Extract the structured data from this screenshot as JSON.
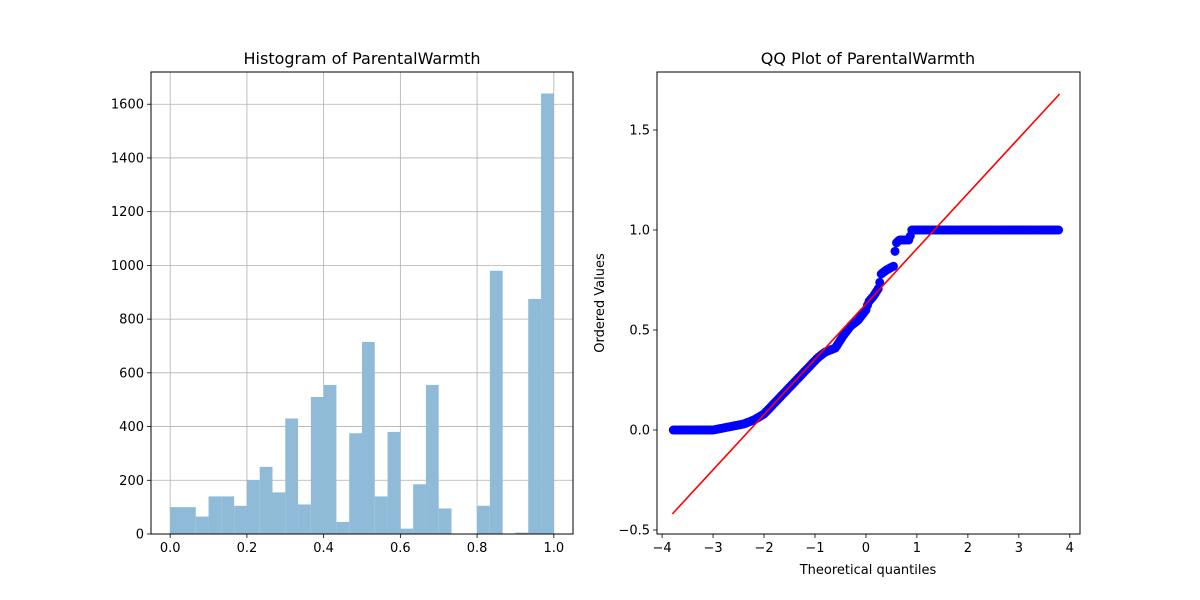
{
  "chart_data": [
    {
      "type": "bar",
      "title": "Histogram of ParentalWarmth",
      "xlabel": "",
      "ylabel": "",
      "xlim": [
        -0.05,
        1.05
      ],
      "ylim": [
        0,
        1720
      ],
      "grid": true,
      "bar_color": "#8fbbd9",
      "x_ticks": [
        0.0,
        0.2,
        0.4,
        0.6,
        0.8,
        1.0
      ],
      "x_tick_labels": [
        "0.0",
        "0.2",
        "0.4",
        "0.6",
        "0.8",
        "1.0"
      ],
      "y_ticks": [
        0,
        200,
        400,
        600,
        800,
        1000,
        1200,
        1400,
        1600
      ],
      "y_tick_labels": [
        "0",
        "200",
        "400",
        "600",
        "800",
        "1000",
        "1200",
        "1400",
        "1600"
      ],
      "bin_edges": [
        0.0,
        0.0333,
        0.0667,
        0.1,
        0.1333,
        0.1667,
        0.2,
        0.2333,
        0.2667,
        0.3,
        0.3333,
        0.3667,
        0.4,
        0.4333,
        0.4667,
        0.5,
        0.5333,
        0.5667,
        0.6,
        0.6333,
        0.6667,
        0.7,
        0.7333,
        0.7667,
        0.8,
        0.8333,
        0.8667,
        0.9,
        0.9333,
        0.9667,
        1.0
      ],
      "values": [
        100,
        100,
        65,
        140,
        140,
        105,
        200,
        250,
        155,
        430,
        110,
        510,
        555,
        45,
        375,
        715,
        140,
        380,
        20,
        185,
        555,
        95,
        0,
        0,
        105,
        980,
        0,
        5,
        875,
        1640
      ]
    },
    {
      "type": "scatter",
      "title": "QQ Plot of ParentalWarmth",
      "xlabel": "Theoretical quantiles",
      "ylabel": "Ordered Values",
      "xlim": [
        -4.1,
        4.2
      ],
      "ylim": [
        -0.52,
        1.79
      ],
      "grid": false,
      "point_color": "#0000ff",
      "line_color": "#ff0000",
      "x_ticks": [
        -4,
        -3,
        -2,
        -1,
        0,
        1,
        2,
        3,
        4
      ],
      "x_tick_labels": [
        "−4",
        "−3",
        "−2",
        "−1",
        "0",
        "1",
        "2",
        "3",
        "4"
      ],
      "y_ticks": [
        -0.5,
        0.0,
        0.5,
        1.0,
        1.5
      ],
      "y_tick_labels": [
        "−0.5",
        "0.0",
        "0.5",
        "1.0",
        "1.5"
      ],
      "fit_line": {
        "x": [
          -3.8,
          3.8
        ],
        "y": [
          -0.42,
          1.68
        ]
      },
      "quantile_curve": [
        [
          -3.78,
          0.0
        ],
        [
          -3.5,
          0.0
        ],
        [
          -3.2,
          0.0
        ],
        [
          -3.0,
          0.0
        ],
        [
          -2.8,
          0.01
        ],
        [
          -2.6,
          0.02
        ],
        [
          -2.4,
          0.03
        ],
        [
          -2.2,
          0.05
        ],
        [
          -2.0,
          0.08
        ],
        [
          -1.85,
          0.12
        ],
        [
          -1.7,
          0.16
        ],
        [
          -1.55,
          0.2
        ],
        [
          -1.4,
          0.24
        ],
        [
          -1.25,
          0.28
        ],
        [
          -1.1,
          0.32
        ],
        [
          -0.95,
          0.36
        ],
        [
          -0.8,
          0.39
        ],
        [
          -0.6,
          0.41
        ],
        [
          -0.45,
          0.47
        ],
        [
          -0.3,
          0.52
        ],
        [
          -0.15,
          0.55
        ],
        [
          0.0,
          0.6
        ],
        [
          0.05,
          0.64
        ],
        [
          0.15,
          0.67
        ],
        [
          0.25,
          0.71
        ],
        [
          0.3,
          0.78
        ],
        [
          0.4,
          0.8
        ],
        [
          0.55,
          0.82
        ],
        [
          0.58,
          0.93
        ],
        [
          0.65,
          0.95
        ],
        [
          0.85,
          0.95
        ],
        [
          0.9,
          1.0
        ],
        [
          1.5,
          1.0
        ],
        [
          2.0,
          1.0
        ],
        [
          2.5,
          1.0
        ],
        [
          3.0,
          1.0
        ],
        [
          3.5,
          1.0
        ],
        [
          3.8,
          1.0
        ]
      ]
    }
  ]
}
